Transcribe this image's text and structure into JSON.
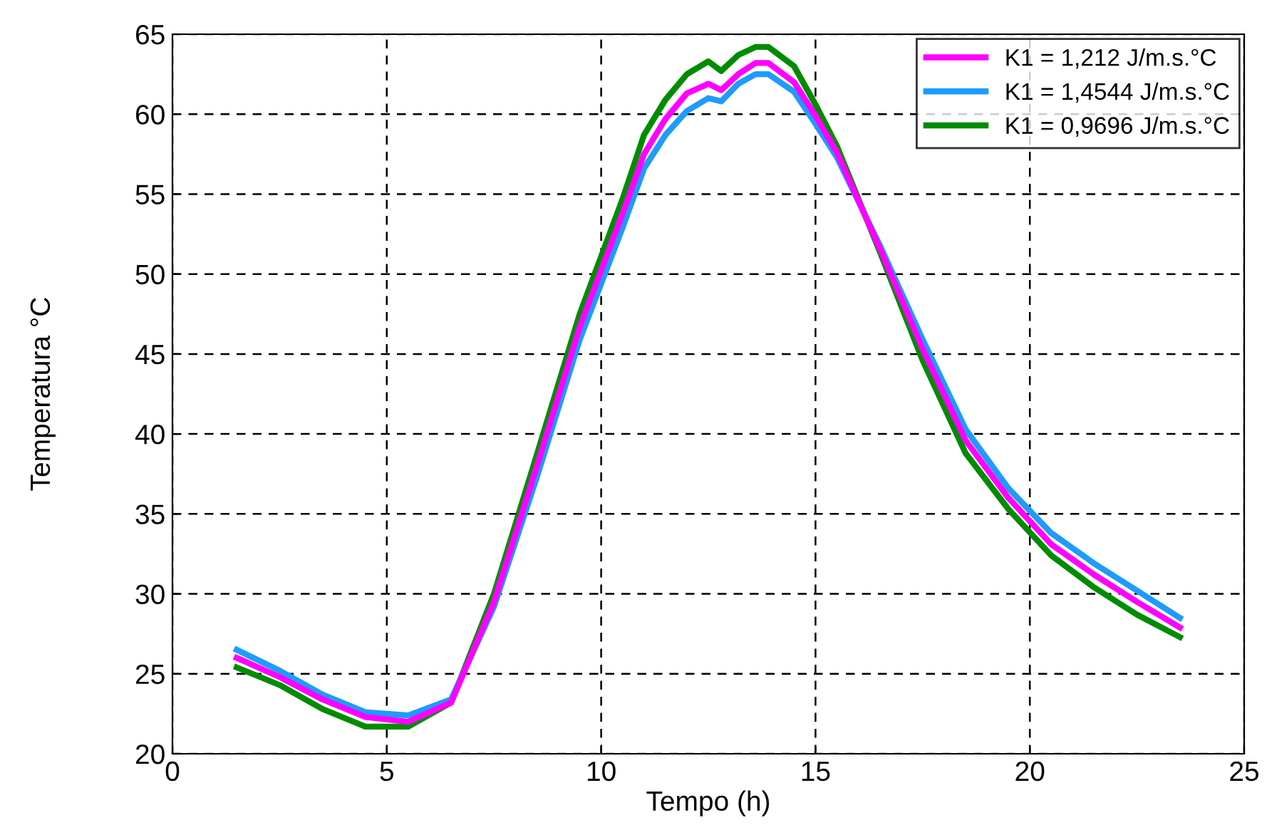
{
  "chart_data": {
    "type": "line",
    "xlabel": "Tempo (h)",
    "ylabel": "Temperatura °C",
    "x": [
      1.5,
      2.5,
      3.5,
      4.5,
      5.5,
      6.5,
      7.5,
      8.5,
      9.5,
      10.5,
      11.0,
      11.5,
      12.0,
      12.5,
      12.8,
      13.2,
      13.6,
      13.9,
      14.5,
      15.0,
      15.5,
      16.5,
      17.5,
      18.5,
      19.5,
      20.5,
      21.5,
      22.5,
      23.5
    ],
    "series": [
      {
        "name": "K1 = 1,212 J/m.s.°C",
        "color": "#ff00ff",
        "values": [
          26.0,
          24.8,
          23.4,
          22.3,
          22.0,
          23.2,
          29.5,
          38.0,
          46.7,
          53.8,
          57.5,
          59.7,
          61.3,
          61.9,
          61.5,
          62.5,
          63.2,
          63.2,
          62.0,
          59.9,
          57.6,
          51.6,
          45.3,
          39.6,
          36.0,
          33.1,
          31.2,
          29.5,
          27.9
        ]
      },
      {
        "name": "K1 = 1,4544 J/m.s.°C",
        "color": "#1e9bff",
        "values": [
          26.5,
          25.2,
          23.7,
          22.6,
          22.4,
          23.4,
          29.2,
          37.3,
          45.9,
          52.9,
          56.6,
          58.7,
          60.2,
          61.0,
          60.8,
          61.9,
          62.5,
          62.5,
          61.4,
          59.4,
          57.3,
          51.8,
          45.9,
          40.3,
          36.6,
          33.8,
          31.9,
          30.2,
          28.5
        ]
      },
      {
        "name": "K1 = 0,9696 J/m.s.°C",
        "color": "#008c00",
        "values": [
          25.4,
          24.3,
          22.8,
          21.7,
          21.7,
          23.2,
          30.0,
          38.7,
          47.5,
          54.7,
          58.7,
          60.9,
          62.5,
          63.3,
          62.7,
          63.7,
          64.2,
          64.2,
          63.0,
          60.6,
          58.0,
          51.4,
          44.6,
          38.8,
          35.3,
          32.4,
          30.4,
          28.7,
          27.3
        ]
      }
    ],
    "xlim": [
      0,
      25
    ],
    "xticks": [
      0,
      5,
      10,
      15,
      20,
      25
    ],
    "ylim": [
      20,
      65
    ],
    "yticks": [
      20,
      25,
      30,
      35,
      40,
      45,
      50,
      55,
      60,
      65
    ],
    "grid": true,
    "legend": "top right",
    "line_style": "solid",
    "marker": "none"
  }
}
